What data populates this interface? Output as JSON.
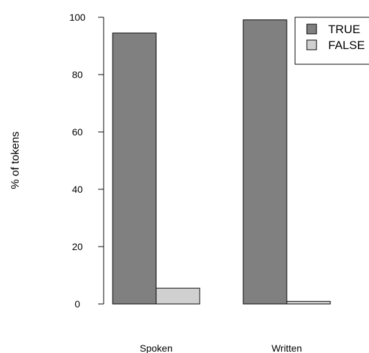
{
  "chart_data": {
    "type": "bar",
    "ylabel": "% of tokens",
    "categories": [
      "Spoken",
      "Written"
    ],
    "series": [
      {
        "name": "TRUE",
        "color": "#808080",
        "values": [
          94.5,
          99.1
        ]
      },
      {
        "name": "FALSE",
        "color": "#d0d0d0",
        "values": [
          5.5,
          0.9
        ]
      }
    ],
    "ylim": [
      0,
      100
    ],
    "yticks": [
      "0",
      "20",
      "40",
      "60",
      "80",
      "100"
    ],
    "grid": false,
    "legend": "top-right"
  }
}
